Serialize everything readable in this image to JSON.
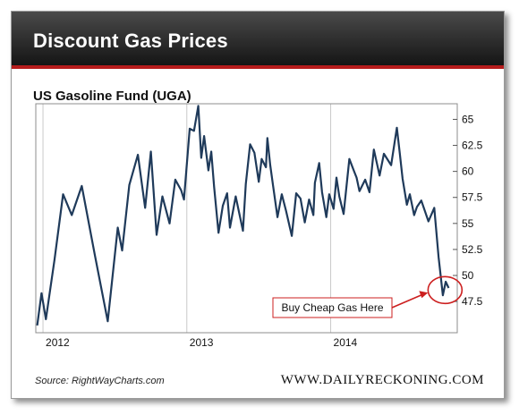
{
  "header": {
    "title": "Discount Gas Prices"
  },
  "footer": {
    "source": "Source: RightWayCharts.com",
    "site": "WWW.DAILYRECKONING.COM"
  },
  "chart_data": {
    "type": "line",
    "title": "US Gasoline Fund (UGA)",
    "xlabel": "",
    "ylabel": "",
    "xlim": [
      2011.95,
      2014.88
    ],
    "ylim": [
      44.5,
      66.5
    ],
    "y_ticks": [
      "65",
      "62.5",
      "60",
      "57.5",
      "55",
      "52.5",
      "50",
      "47.5"
    ],
    "x_ticks": [
      "2012",
      "2013",
      "2014"
    ],
    "y_axis_side": "right",
    "grid": "vertical",
    "line_color": "#1f3a5a",
    "annotation": {
      "text": "Buy Cheap Gas Here",
      "color": "#cc1f1f"
    },
    "series": [
      {
        "x": [
          2011.96,
          2011.99,
          2012.02,
          2012.08,
          2012.14,
          2012.2,
          2012.27,
          2012.36,
          2012.45,
          2012.52,
          2012.55,
          2012.6,
          2012.66,
          2012.71,
          2012.75,
          2012.79,
          2012.83,
          2012.88,
          2012.92,
          2012.96,
          2012.98,
          2013.02,
          2013.05,
          2013.08,
          2013.1,
          2013.12,
          2013.15,
          2013.17,
          2013.19,
          2013.22,
          2013.25,
          2013.28,
          2013.3,
          2013.34,
          2013.39,
          2013.41,
          2013.44,
          2013.47,
          2013.5,
          2013.52,
          2013.55,
          2013.56,
          2013.58,
          2013.6,
          2013.63,
          2013.66,
          2013.69,
          2013.73,
          2013.76,
          2013.79,
          2013.82,
          2013.85,
          2013.88,
          2013.89,
          2013.92,
          2013.94,
          2013.97,
          2013.99,
          2014.02,
          2014.04,
          2014.06,
          2014.09,
          2014.13,
          2014.16,
          2014.18,
          2014.2,
          2014.24,
          2014.27,
          2014.3,
          2014.34,
          2014.37,
          2014.42,
          2014.46,
          2014.48,
          2014.5,
          2014.53,
          2014.55,
          2014.58,
          2014.6,
          2014.63,
          2014.68,
          2014.72,
          2014.75,
          2014.78,
          2014.8,
          2014.82
        ],
        "y": [
          45.2,
          48.3,
          45.8,
          51.5,
          57.8,
          55.8,
          58.6,
          52.0,
          45.6,
          54.6,
          52.4,
          58.7,
          61.6,
          56.5,
          61.9,
          53.9,
          57.6,
          55.0,
          59.2,
          58.2,
          57.3,
          64.1,
          63.9,
          66.3,
          61.3,
          63.4,
          60.1,
          61.9,
          58.5,
          54.1,
          56.7,
          57.9,
          54.6,
          57.6,
          54.3,
          58.8,
          62.6,
          61.8,
          59.0,
          61.2,
          60.4,
          63.2,
          60.6,
          58.6,
          55.6,
          57.8,
          56.2,
          53.8,
          57.9,
          57.4,
          55.1,
          57.3,
          55.8,
          58.9,
          60.8,
          58.0,
          55.6,
          57.8,
          56.4,
          59.4,
          57.6,
          55.9,
          61.2,
          60.1,
          59.4,
          58.1,
          59.2,
          58.0,
          62.1,
          59.6,
          61.7,
          60.6,
          64.2,
          61.8,
          59.3,
          56.8,
          57.8,
          55.8,
          56.6,
          57.2,
          55.2,
          56.5,
          51.8,
          48.1,
          49.4,
          48.8
        ]
      }
    ]
  }
}
